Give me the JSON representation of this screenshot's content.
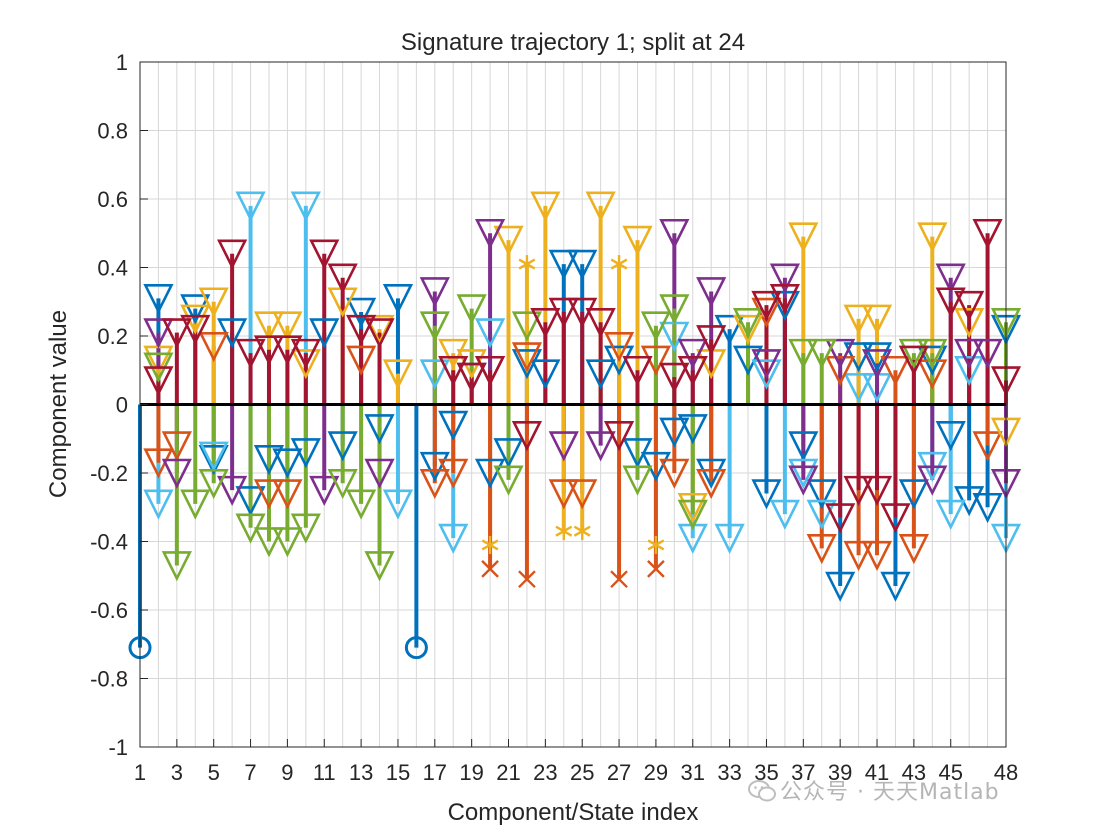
{
  "chart_data": {
    "type": "stem",
    "title": "Signature trajectory 1; split at 24",
    "xlabel": "Component/State index",
    "ylabel": "Component value",
    "xlim": [
      1,
      48
    ],
    "ylim": [
      -1,
      1
    ],
    "yticks": [
      1,
      0.8,
      0.6,
      0.4,
      0.2,
      0,
      -0.2,
      -0.4,
      -0.6,
      -0.8,
      -1
    ],
    "ytick_labels": [
      "1",
      "0.8",
      "0.6",
      "0.4",
      "0.2",
      "0",
      "-0.2",
      "-0.4",
      "-0.6",
      "-0.8",
      "-1"
    ],
    "xtick_labels": [
      "1",
      "3",
      "5",
      "7",
      "9",
      "11",
      "13",
      "15",
      "17",
      "19",
      "21",
      "23",
      "25",
      "27",
      "29",
      "31",
      "33",
      "35",
      "37",
      "39",
      "41",
      "43",
      "45",
      "48"
    ],
    "grid": true,
    "colors": [
      "#0072BD",
      "#D95319",
      "#EDB120",
      "#7E2F8E",
      "#77AC30",
      "#4DBEEE",
      "#A2142F"
    ],
    "series": [
      {
        "marker": "circle",
        "color": "#0072BD",
        "x": [
          1,
          16
        ],
        "y": [
          -0.71,
          -0.71
        ]
      },
      {
        "marker": "triangle-down",
        "color": "#0072BD",
        "x": [
          2,
          4,
          5,
          6,
          7,
          8,
          9,
          10,
          11,
          12,
          13,
          14,
          15,
          17,
          18,
          19,
          20,
          21,
          22,
          23,
          24,
          25,
          26,
          27,
          28,
          29,
          30,
          31,
          32,
          33,
          34,
          35,
          36,
          37,
          38,
          39,
          40,
          41,
          42,
          43,
          44,
          45,
          46,
          47,
          48
        ],
        "y": [
          0.31,
          0.28,
          -0.16,
          0.21,
          -0.28,
          -0.16,
          -0.17,
          -0.14,
          0.21,
          -0.12,
          0.27,
          -0.07,
          0.31,
          -0.18,
          -0.06,
          0.08,
          -0.2,
          -0.14,
          0.12,
          0.09,
          0.41,
          0.41,
          0.09,
          0.13,
          -0.14,
          -0.18,
          -0.08,
          -0.07,
          -0.2,
          0.22,
          0.13,
          -0.26,
          0.29,
          -0.12,
          -0.26,
          -0.53,
          0.14,
          0.14,
          -0.53,
          -0.26,
          0.13,
          -0.09,
          -0.28,
          -0.3,
          0.22
        ]
      },
      {
        "marker": "triangle-down",
        "color": "#4DBEEE",
        "x": [
          2,
          5,
          7,
          10,
          15,
          17,
          18,
          20,
          30,
          31,
          33,
          35,
          36,
          37,
          38,
          40,
          41,
          44,
          45,
          46,
          48
        ],
        "y": [
          -0.29,
          -0.15,
          0.58,
          0.58,
          -0.29,
          0.09,
          -0.39,
          0.21,
          0.2,
          -0.39,
          -0.39,
          0.09,
          -0.32,
          -0.2,
          -0.32,
          0.05,
          0.05,
          -0.18,
          -0.32,
          0.1,
          -0.39
        ]
      },
      {
        "marker": "triangle-down",
        "color": "#D95319",
        "x": [
          2,
          3,
          5,
          8,
          9,
          13,
          17,
          18,
          20,
          22,
          24,
          25,
          27,
          29,
          30,
          32,
          35,
          38,
          39,
          40,
          41,
          42,
          43,
          44,
          47
        ],
        "y": [
          -0.17,
          -0.12,
          0.17,
          -0.26,
          -0.26,
          0.13,
          -0.23,
          -0.2,
          0.1,
          0.14,
          -0.26,
          -0.26,
          0.17,
          0.13,
          -0.2,
          -0.23,
          0.27,
          -0.42,
          0.1,
          -0.44,
          -0.44,
          0.1,
          -0.42,
          0.09,
          -0.12
        ]
      },
      {
        "marker": "triangle-down",
        "color": "#EDB120",
        "x": [
          2,
          4,
          5,
          8,
          9,
          10,
          12,
          14,
          15,
          18,
          19,
          21,
          23,
          26,
          28,
          31,
          32,
          34,
          37,
          40,
          41,
          44,
          46,
          48
        ],
        "y": [
          0.13,
          0.25,
          0.3,
          0.23,
          0.23,
          0.12,
          0.3,
          0.22,
          0.09,
          0.15,
          0.12,
          0.48,
          0.58,
          0.58,
          0.48,
          -0.3,
          0.12,
          0.22,
          0.49,
          0.25,
          0.25,
          0.49,
          0.24,
          -0.08
        ]
      },
      {
        "marker": "triangle-down",
        "color": "#7E2F8E",
        "x": [
          2,
          3,
          6,
          11,
          14,
          17,
          20,
          24,
          26,
          30,
          31,
          32,
          35,
          36,
          37,
          39,
          41,
          44,
          45,
          46,
          47,
          48
        ],
        "y": [
          0.21,
          -0.2,
          -0.25,
          -0.25,
          -0.2,
          0.33,
          0.5,
          -0.12,
          -0.12,
          0.5,
          0.15,
          0.33,
          0.12,
          0.37,
          -0.22,
          0.15,
          0.12,
          -0.22,
          0.37,
          0.15,
          0.15,
          -0.23
        ]
      },
      {
        "marker": "triangle-down",
        "color": "#77AC30",
        "x": [
          2,
          3,
          4,
          5,
          7,
          8,
          9,
          10,
          12,
          13,
          14,
          17,
          19,
          21,
          22,
          28,
          29,
          30,
          31,
          34,
          37,
          38,
          43,
          44,
          48
        ],
        "y": [
          0.11,
          -0.47,
          -0.29,
          -0.23,
          -0.36,
          -0.4,
          -0.4,
          -0.36,
          -0.23,
          -0.29,
          -0.47,
          0.23,
          0.28,
          -0.22,
          0.23,
          -0.22,
          0.23,
          0.28,
          -0.32,
          0.24,
          0.15,
          0.15,
          0.15,
          0.15,
          0.24
        ]
      },
      {
        "marker": "triangle-down",
        "color": "#A2142F",
        "x": [
          2,
          3,
          4,
          6,
          7,
          8,
          9,
          10,
          11,
          12,
          13,
          14,
          18,
          19,
          20,
          22,
          23,
          24,
          25,
          26,
          27,
          28,
          30,
          31,
          32,
          35,
          36,
          39,
          40,
          41,
          42,
          43,
          45,
          46,
          47,
          48
        ],
        "y": [
          0.07,
          0.21,
          0.22,
          0.44,
          0.15,
          0.16,
          0.16,
          0.15,
          0.44,
          0.37,
          0.22,
          0.21,
          0.1,
          0.08,
          0.1,
          -0.09,
          0.24,
          0.27,
          0.27,
          0.24,
          -0.09,
          0.1,
          0.08,
          0.1,
          0.19,
          0.29,
          0.31,
          -0.33,
          -0.25,
          -0.25,
          -0.33,
          0.13,
          0.3,
          0.29,
          0.5,
          0.07
        ]
      },
      {
        "marker": "asterisk",
        "color": "#EDB120",
        "x": [
          20,
          22,
          24,
          25,
          27,
          29
        ],
        "y": [
          -0.41,
          0.41,
          -0.37,
          -0.37,
          0.41,
          -0.41
        ]
      },
      {
        "marker": "x",
        "color": "#D95319",
        "x": [
          20,
          22,
          27,
          29
        ],
        "y": [
          -0.48,
          -0.51,
          -0.51,
          -0.48
        ]
      }
    ]
  },
  "watermark": {
    "text": "公众号 · 天天Matlab"
  }
}
